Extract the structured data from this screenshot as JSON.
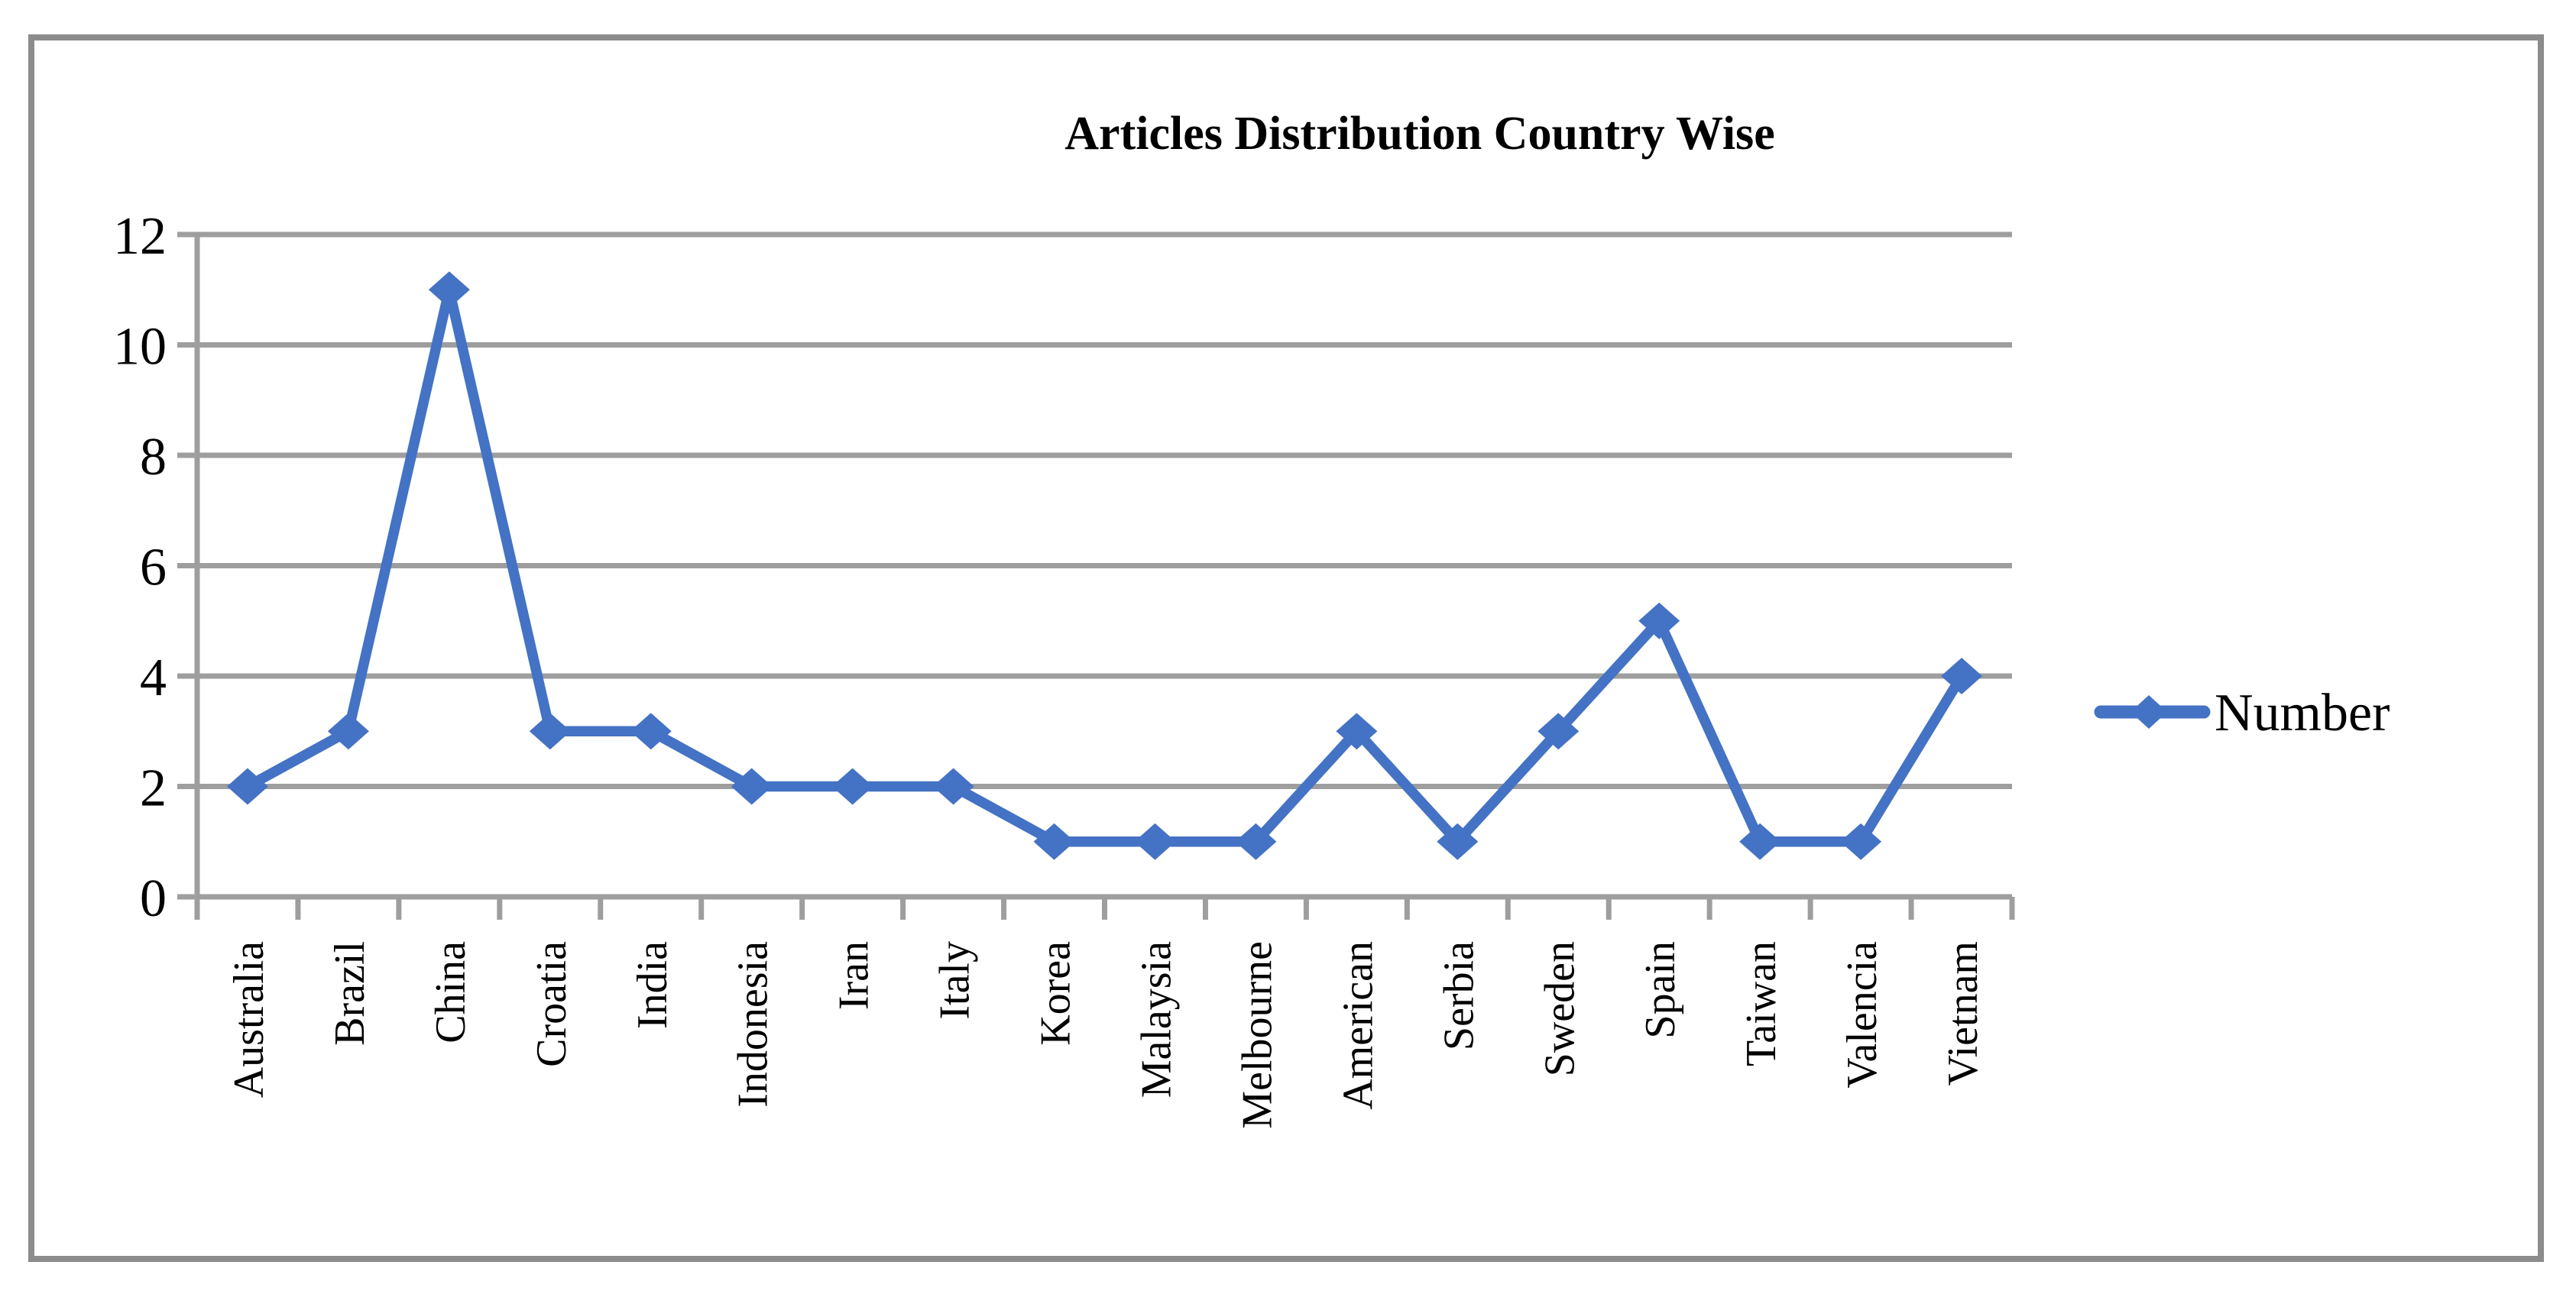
{
  "chart_data": {
    "type": "line",
    "title": "Articles Distribution Country Wise",
    "categories": [
      "Australia",
      "Brazil",
      "China",
      "Croatia",
      "India",
      "Indonesia",
      "Iran",
      "Italy",
      "Korea",
      "Malaysia",
      "Melbourne",
      "American",
      "Serbia",
      "Sweden",
      "Spain",
      "Taiwan",
      "Valencia",
      "Vietnam"
    ],
    "series": [
      {
        "name": "Number",
        "values": [
          2,
          3,
          11,
          3,
          3,
          2,
          2,
          2,
          1,
          1,
          1,
          3,
          1,
          3,
          5,
          1,
          1,
          4
        ]
      }
    ],
    "ylim": [
      0,
      12
    ],
    "yticks": [
      0,
      2,
      4,
      6,
      8,
      10,
      12
    ],
    "grid": true,
    "legend_position": "right",
    "marker": "diamond",
    "colors": {
      "line": "#4472C4",
      "gridline": "#9E9E9E",
      "axis": "#9E9E9E",
      "border": "#8C8C8C",
      "text": "#000000"
    }
  }
}
